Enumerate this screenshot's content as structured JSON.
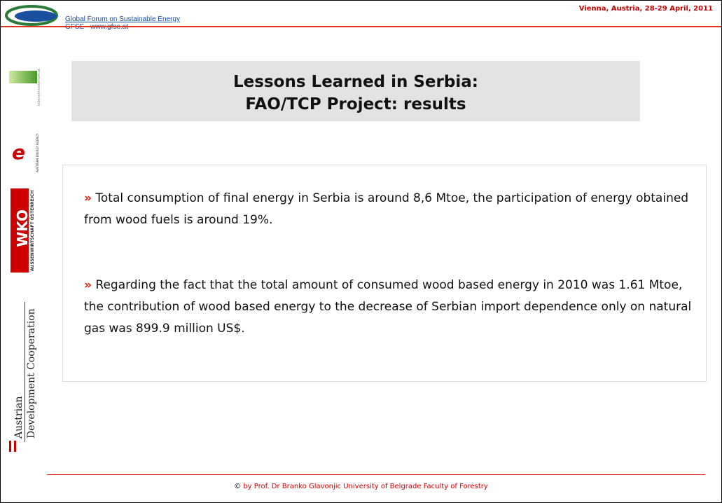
{
  "header": {
    "forum": "Global Forum on Sustainable Energy",
    "site": "GFSE - www.gfse.at",
    "event": "Vienna, Austria, 28-29 April, 2011"
  },
  "sidebar": {
    "lebensministerium": "lebensministerium.at",
    "energy_agency": "AUSTRIAN ENERGY AGENCY",
    "wko": "WKO",
    "wko_sub": "AUSSENWIRTSCHAFT ÖSTERREICH",
    "adc1": "Austrian",
    "adc2": "Development Cooperation"
  },
  "title": {
    "line1": "Lessons Learned in Serbia:",
    "line2": "FAO/TCP Project:  results"
  },
  "bullets": [
    "Total consumption of final energy in Serbia is around 8,6 Mtoe, the participation of energy obtained from wood fuels is around 19%.",
    "Regarding the fact that the total amount of consumed wood based energy in 2010 was 1.61 Mtoe, the contribution of wood based energy to the decrease of Serbian import dependence only on natural gas was 899.9 million US$."
  ],
  "footer": {
    "symbol": "©",
    "credit": "by Prof. Dr Branko Glavonjic University of Belgrade Faculty of Forestry"
  }
}
